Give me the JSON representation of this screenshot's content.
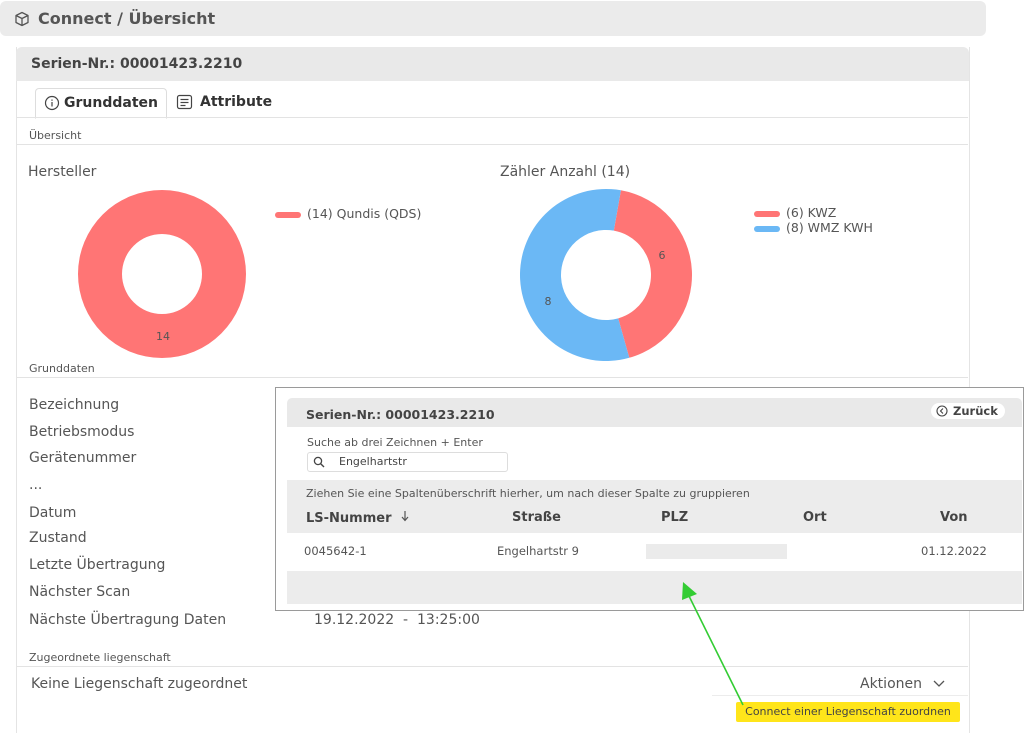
{
  "header": {
    "title": "Connect / Übersicht",
    "icon": "cube-icon"
  },
  "panel": {
    "title": "Serien-Nr.: 00001423.2210"
  },
  "tabs": [
    {
      "label": "Grunddaten",
      "icon": "info-circle-icon",
      "active": true
    },
    {
      "label": "Attribute",
      "icon": "list-icon",
      "active": false
    }
  ],
  "sections": {
    "overview": "Übersicht",
    "basic": "Grunddaten",
    "property": "Zugeordnete liegenschaft"
  },
  "chart_data": [
    {
      "type": "pie",
      "title": "Hersteller",
      "donut": true,
      "legend_position": "right",
      "series": [
        {
          "name": "(14) Qundis (QDS)",
          "value": 14,
          "label": "14",
          "color": "#ff7575"
        }
      ]
    },
    {
      "type": "pie",
      "title": "Zähler Anzahl (14)",
      "donut": true,
      "legend_position": "right",
      "series": [
        {
          "name": "(6) KWZ",
          "value": 6,
          "label": "6",
          "color": "#ff7575"
        },
        {
          "name": "(8) WMZ KWH",
          "value": 8,
          "label": "8",
          "color": "#6bb8f5"
        }
      ]
    }
  ],
  "fields": [
    "Bezeichnung",
    "Betriebsmodus",
    "Gerätenummer",
    "...",
    "Datum",
    "Zustand",
    "Letzte Übertragung",
    "Nächster Scan",
    "Nächste Übertragung Daten"
  ],
  "next_transfer_value": "19.12.2022  -  13:25:00",
  "no_property": "Keine Liegenschaft zugeordnet",
  "actions_label": "Aktionen",
  "connect_button": "Connect einer Liegenschaft zuordnen",
  "overlay": {
    "title": "Serien-Nr.: 00001423.2210",
    "back_label": "Zurück",
    "search_hint": "Suche ab drei Zeichnen + Enter",
    "search_value": "Engelhartstr",
    "group_hint": "Ziehen Sie eine Spaltenüberschrift hierher, um nach dieser Spalte zu gruppieren",
    "columns": [
      "LS-Nummer",
      "Straße",
      "PLZ",
      "Ort",
      "Von"
    ],
    "rows": [
      {
        "ls": "0045642-1",
        "street": "Engelhartstr 9",
        "plz": "",
        "ort": "",
        "von": "01.12.2022"
      }
    ]
  },
  "colors": {
    "red": "#ff7575",
    "blue": "#6bb8f5",
    "accent_yellow": "#ffe51a",
    "arrow_green": "#33cc33"
  }
}
